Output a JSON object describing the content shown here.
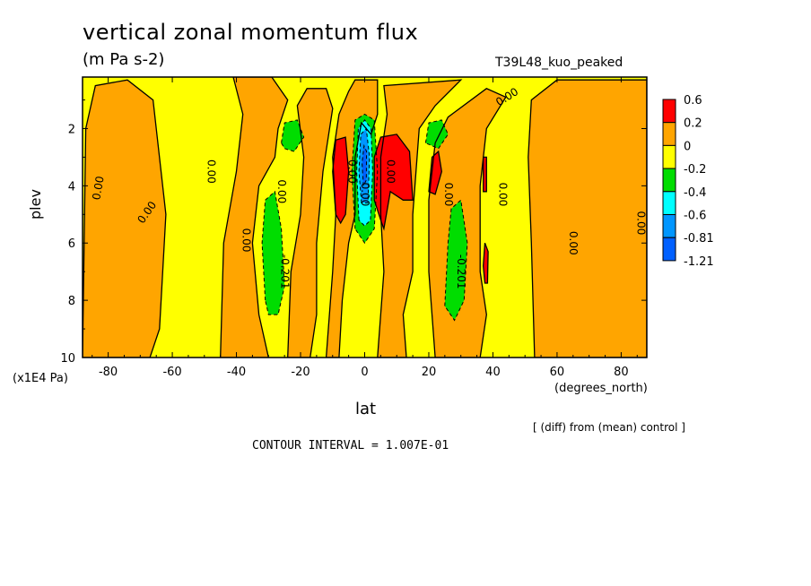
{
  "header": {
    "title": "vertical zonal momentum flux",
    "units": "(m Pa s-2)",
    "run_label": "T39L48_kuo_peaked",
    "y_unit": "(x1E4 Pa)",
    "x_unit": "(degrees_north)",
    "diff_note": "[ (diff) from (mean) control ]",
    "contour_interval": "CONTOUR INTERVAL = 1.007E-01"
  },
  "chart_data": {
    "type": "heatmap",
    "title": "vertical zonal momentum flux",
    "xlabel": "lat",
    "ylabel": "plev",
    "xlim": [
      -88,
      88
    ],
    "ylim": [
      10,
      0.2
    ],
    "x_ticks": [
      -80,
      -60,
      -40,
      -20,
      0,
      20,
      40,
      60,
      80
    ],
    "y_ticks": [
      2,
      4,
      6,
      8,
      10
    ],
    "legend": {
      "placement": "right",
      "levels": [
        "0.6",
        "0.2",
        "0",
        "-0.2",
        "-0.4",
        "-0.6",
        "-0.81",
        "-1.21"
      ],
      "colors": [
        "#ff0000",
        "#ffa500",
        "#ffff00",
        "#00dd00",
        "#00ffff",
        "#0096ff",
        "#0060ff"
      ]
    },
    "background_color": "#ffff00",
    "regions": [
      {
        "level": "0.2",
        "color": "#ffa500",
        "poly": [
          [
            -88,
            10
          ],
          [
            -87,
            2
          ],
          [
            -84,
            0.5
          ],
          [
            -74,
            0.3
          ],
          [
            -66,
            1
          ],
          [
            -62,
            5
          ],
          [
            -64,
            9
          ],
          [
            -67,
            10
          ]
        ]
      },
      {
        "level": "0.2",
        "color": "#ffa500",
        "poly": [
          [
            -45,
            10
          ],
          [
            -44,
            6
          ],
          [
            -40,
            3.5
          ],
          [
            -38,
            1.5
          ],
          [
            -41,
            0.2
          ],
          [
            -29,
            0.2
          ],
          [
            -24,
            1
          ],
          [
            -27,
            2
          ],
          [
            -28,
            3
          ],
          [
            -33,
            4
          ],
          [
            -35,
            6
          ],
          [
            -33,
            8.5
          ],
          [
            -30,
            10
          ]
        ]
      },
      {
        "level": "0.2",
        "color": "#ffa500",
        "poly": [
          [
            -24,
            10
          ],
          [
            -23,
            7
          ],
          [
            -20,
            5
          ],
          [
            -19,
            3
          ],
          [
            -21,
            1.2
          ],
          [
            -18,
            0.6
          ],
          [
            -12,
            0.6
          ],
          [
            -10,
            1.3
          ],
          [
            -13,
            3.5
          ],
          [
            -15,
            6
          ],
          [
            -15,
            8.5
          ],
          [
            -17,
            10
          ]
        ]
      },
      {
        "level": "0.2",
        "color": "#ffa500",
        "poly": [
          [
            -12,
            10
          ],
          [
            -10,
            7
          ],
          [
            -9,
            5
          ],
          [
            -10,
            3
          ],
          [
            -8,
            1.5
          ],
          [
            -5,
            0.7
          ],
          [
            -3,
            0.3
          ],
          [
            4,
            0.3
          ],
          [
            4,
            1.5
          ],
          [
            2,
            2.2
          ],
          [
            -1,
            1.8
          ],
          [
            -3,
            3
          ],
          [
            -3,
            5
          ],
          [
            -5,
            6
          ],
          [
            -7,
            8
          ],
          [
            -8,
            10
          ]
        ]
      },
      {
        "level": "0.2",
        "color": "#ffa500",
        "poly": [
          [
            4,
            10
          ],
          [
            6,
            7
          ],
          [
            5,
            5
          ],
          [
            5,
            3
          ],
          [
            7,
            1.5
          ],
          [
            6,
            0.5
          ],
          [
            30,
            0.3
          ],
          [
            22,
            1.2
          ],
          [
            17,
            2
          ],
          [
            16,
            3.5
          ],
          [
            15,
            5
          ],
          [
            15,
            7
          ],
          [
            12,
            8.5
          ],
          [
            13,
            10
          ]
        ]
      },
      {
        "level": "0.2",
        "color": "#ffa500",
        "poly": [
          [
            22,
            10
          ],
          [
            20,
            7
          ],
          [
            20,
            4.5
          ],
          [
            22,
            2.5
          ],
          [
            26,
            1.6
          ],
          [
            38,
            0.6
          ],
          [
            44,
            0.9
          ],
          [
            38,
            2
          ],
          [
            36,
            4
          ],
          [
            36,
            7
          ],
          [
            38,
            8.5
          ],
          [
            36,
            10
          ]
        ]
      },
      {
        "level": "0.2",
        "color": "#ffa500",
        "poly": [
          [
            53,
            10
          ],
          [
            52,
            6
          ],
          [
            51,
            3
          ],
          [
            52,
            1
          ],
          [
            60,
            0.3
          ],
          [
            88,
            0.3
          ],
          [
            88,
            10
          ]
        ]
      },
      {
        "level": "-0.2",
        "color": "#00dd00",
        "poly": [
          [
            -31,
            8
          ],
          [
            -32,
            6
          ],
          [
            -31,
            4.5
          ],
          [
            -28,
            4.2
          ],
          [
            -26,
            5.5
          ],
          [
            -25,
            7.5
          ],
          [
            -27,
            8.5
          ],
          [
            -30,
            8.5
          ]
        ]
      },
      {
        "level": "-0.2",
        "color": "#00dd00",
        "poly": [
          [
            -26,
            2.5
          ],
          [
            -25,
            1.8
          ],
          [
            -21,
            1.7
          ],
          [
            -19,
            2.3
          ],
          [
            -22,
            2.8
          ],
          [
            -25,
            2.7
          ]
        ]
      },
      {
        "level": "-0.2",
        "color": "#00dd00",
        "poly": [
          [
            25,
            8.2
          ],
          [
            26,
            6
          ],
          [
            27,
            4.8
          ],
          [
            30,
            4.5
          ],
          [
            32,
            6
          ],
          [
            31,
            8
          ],
          [
            28,
            8.7
          ]
        ]
      },
      {
        "level": "-0.2",
        "color": "#00dd00",
        "poly": [
          [
            19,
            2.5
          ],
          [
            20,
            1.8
          ],
          [
            24,
            1.7
          ],
          [
            26,
            2.2
          ],
          [
            23,
            2.7
          ]
        ]
      },
      {
        "level": "-0.2",
        "color": "#00dd00",
        "poly": [
          [
            -3,
            5.5
          ],
          [
            -4,
            3.5
          ],
          [
            -3,
            1.7
          ],
          [
            0,
            1.5
          ],
          [
            3,
            1.7
          ],
          [
            4,
            3.5
          ],
          [
            3,
            5.5
          ],
          [
            0,
            6
          ]
        ]
      },
      {
        "level": "-0.6",
        "color": "#00ffff",
        "poly": [
          [
            -1.8,
            5.2
          ],
          [
            -2.5,
            3.5
          ],
          [
            -2,
            2
          ],
          [
            0,
            1.7
          ],
          [
            2,
            2
          ],
          [
            2.5,
            3.5
          ],
          [
            1.8,
            5.2
          ],
          [
            0,
            5.4
          ]
        ]
      },
      {
        "level": "-0.81",
        "color": "#0096ff",
        "poly": [
          [
            -1,
            4.6
          ],
          [
            -1.8,
            3.5
          ],
          [
            -1.2,
            2.2
          ],
          [
            0.5,
            2
          ],
          [
            1.5,
            3
          ],
          [
            1,
            4.6
          ]
        ]
      },
      {
        "level": "-1.21",
        "color": "#0060ff",
        "poly": [
          [
            -0.4,
            4
          ],
          [
            -0.8,
            3.2
          ],
          [
            -0.2,
            2.6
          ],
          [
            0.6,
            2.8
          ],
          [
            0.5,
            3.8
          ]
        ]
      },
      {
        "level": "0.6",
        "color": "#ff0000",
        "poly": [
          [
            -9,
            5
          ],
          [
            -10,
            3.5
          ],
          [
            -9,
            2.4
          ],
          [
            -6,
            2.3
          ],
          [
            -5,
            3.5
          ],
          [
            -6,
            5
          ],
          [
            -7.5,
            5.3
          ]
        ]
      },
      {
        "level": "0.6",
        "color": "#ff0000",
        "poly": [
          [
            3,
            4.5
          ],
          [
            3,
            3
          ],
          [
            5,
            2.3
          ],
          [
            10,
            2.2
          ],
          [
            14,
            2.8
          ],
          [
            15,
            4.5
          ],
          [
            12,
            4.5
          ],
          [
            8,
            4.2
          ],
          [
            6,
            5.5
          ],
          [
            5,
            5.2
          ]
        ]
      },
      {
        "level": "0.6",
        "color": "#ff0000",
        "poly": [
          [
            20,
            4.2
          ],
          [
            21,
            3
          ],
          [
            23,
            2.8
          ],
          [
            24,
            3.5
          ],
          [
            22,
            4.3
          ]
        ]
      },
      {
        "level": "0.6",
        "color": "#ff0000",
        "poly": [
          [
            37,
            4.2
          ],
          [
            37,
            3
          ],
          [
            38,
            3
          ],
          [
            38,
            4.2
          ]
        ]
      },
      {
        "level": "0.6",
        "color": "#ff0000",
        "poly": [
          [
            37.5,
            7.4
          ],
          [
            37,
            6.8
          ],
          [
            37.5,
            6
          ],
          [
            38.5,
            6.3
          ],
          [
            38.3,
            7.4
          ]
        ]
      }
    ],
    "contour_labels": [
      "0.00",
      "0.00",
      "0.00",
      "0.00",
      "0.00",
      "-0.201",
      "0.00",
      "0.00",
      "0.00",
      "0.00",
      "-0.201",
      "0.00",
      "0.00",
      "0.00"
    ]
  }
}
